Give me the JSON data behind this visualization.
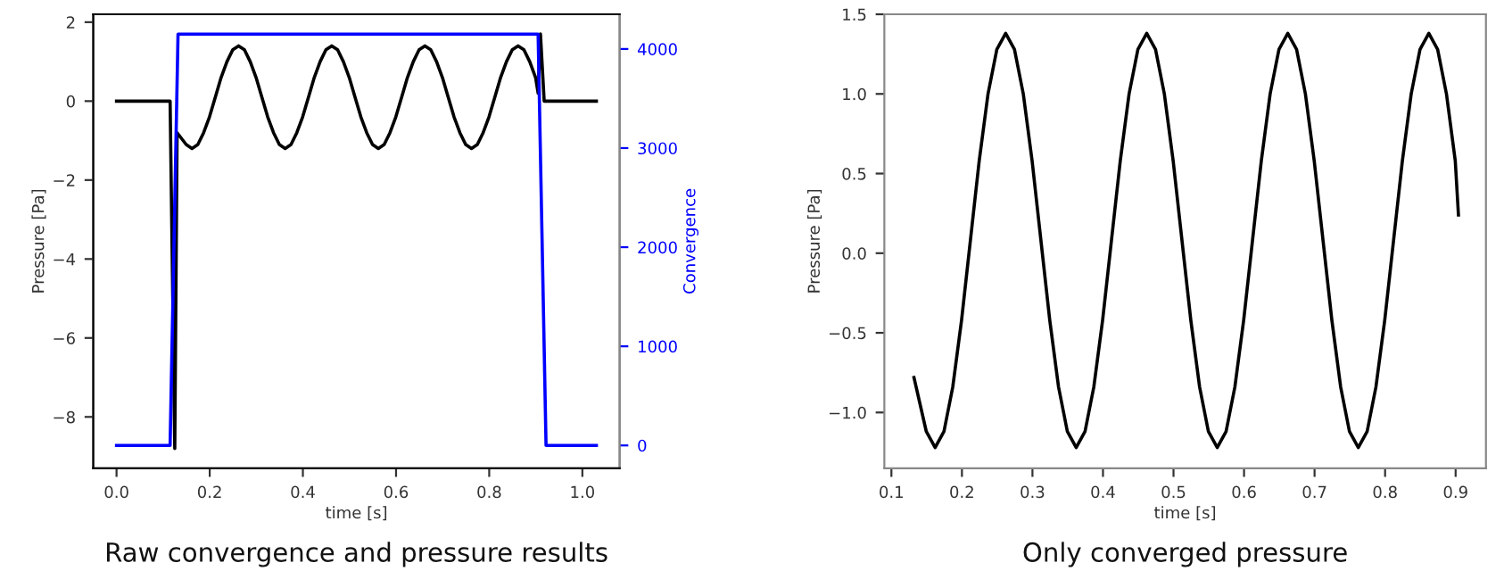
{
  "chart_data": [
    {
      "type": "line",
      "title": "Raw convergence and pressure results",
      "xlabel": "time [s]",
      "ylabel": "Pressure [Pa]",
      "y2label": "Convergence",
      "xlim": [
        -0.05,
        1.08
      ],
      "xticks": [
        {
          "value": 0,
          "label": "0.0"
        },
        {
          "value": 0.2,
          "label": "0.2"
        },
        {
          "value": 0.4,
          "label": "0.4"
        },
        {
          "value": 0.6,
          "label": "0.6"
        },
        {
          "value": 0.8,
          "label": "0.8"
        },
        {
          "value": 1.0,
          "label": "1.0"
        }
      ],
      "ylim": [
        -9.3,
        2.2
      ],
      "yticks": [
        {
          "value": -8,
          "label": "−8"
        },
        {
          "value": -6,
          "label": "−6"
        },
        {
          "value": -4,
          "label": "−4"
        },
        {
          "value": -2,
          "label": "−2"
        },
        0,
        2
      ],
      "y2lim": [
        -230,
        4350
      ],
      "y2ticks": [
        0,
        1000,
        2000,
        3000,
        4000
      ],
      "grid": false,
      "legend": false,
      "series": [
        {
          "color": "#000000",
          "x": [
            0,
            0.115,
            0.125,
            0.13,
            0.1495,
            0.162,
            0.1745,
            0.187,
            0.1995,
            0.212,
            0.2245,
            0.237,
            0.2495,
            0.262,
            0.2745,
            0.287,
            0.2995,
            0.312,
            0.3245,
            0.337,
            0.3495,
            0.362,
            0.3745,
            0.387,
            0.3995,
            0.412,
            0.4245,
            0.437,
            0.4495,
            0.462,
            0.4745,
            0.487,
            0.4995,
            0.512,
            0.5245,
            0.537,
            0.5495,
            0.562,
            0.5745,
            0.587,
            0.5995,
            0.612,
            0.6245,
            0.637,
            0.6495,
            0.662,
            0.6745,
            0.687,
            0.6995,
            0.712,
            0.7245,
            0.737,
            0.7495,
            0.762,
            0.7745,
            0.787,
            0.7995,
            0.812,
            0.8245,
            0.837,
            0.8495,
            0.862,
            0.8745,
            0.887,
            0.8995,
            0.905,
            0.91,
            0.918,
            1.03
          ],
          "values": [
            0,
            0,
            -8.8,
            -0.8,
            -1.1,
            -1.2,
            -1.1,
            -0.8,
            -0.4,
            0.1,
            0.6,
            1.0,
            1.3,
            1.4,
            1.3,
            1.0,
            0.6,
            0.1,
            -0.4,
            -0.8,
            -1.1,
            -1.2,
            -1.1,
            -0.8,
            -0.4,
            0.1,
            0.6,
            1.0,
            1.3,
            1.4,
            1.3,
            1.0,
            0.6,
            0.1,
            -0.4,
            -0.8,
            -1.1,
            -1.2,
            -1.1,
            -0.8,
            -0.4,
            0.1,
            0.6,
            1.0,
            1.3,
            1.4,
            1.3,
            1.0,
            0.6,
            0.1,
            -0.4,
            -0.8,
            -1.1,
            -1.2,
            -1.1,
            -0.8,
            -0.4,
            0.1,
            0.6,
            1.0,
            1.3,
            1.4,
            1.3,
            1.0,
            0.6,
            0.2,
            1.7,
            0,
            0
          ]
        },
        {
          "color": "#0000ff",
          "axis": "y2",
          "x": [
            0,
            0.115,
            0.132,
            0.905,
            0.922,
            1.03
          ],
          "values": [
            0,
            0,
            4150,
            4150,
            0,
            0
          ]
        }
      ]
    },
    {
      "type": "line",
      "title": "Only converged pressure",
      "xlabel": "time [s]",
      "ylabel": "Pressure [Pa]",
      "xlim": [
        0.09,
        0.943
      ],
      "xticks": [
        0.1,
        0.2,
        0.3,
        0.4,
        0.5,
        0.6,
        0.7,
        0.8,
        0.9
      ],
      "ylim": [
        -1.35,
        1.5
      ],
      "yticks": [
        {
          "value": -1.0,
          "label": "−1.0"
        },
        {
          "value": -0.5,
          "label": "−0.5"
        },
        {
          "value": 0,
          "label": "0.0"
        },
        {
          "value": 0.5,
          "label": "0.5"
        },
        {
          "value": 1.0,
          "label": "1.0"
        },
        {
          "value": 1.5,
          "label": "1.5"
        }
      ],
      "grid": false,
      "legend": false,
      "series": [
        {
          "color": "#000000",
          "x": [
            0.132,
            0.1495,
            0.162,
            0.1745,
            0.187,
            0.1995,
            0.212,
            0.2245,
            0.237,
            0.2495,
            0.262,
            0.2745,
            0.287,
            0.2995,
            0.312,
            0.3245,
            0.337,
            0.3495,
            0.362,
            0.3745,
            0.387,
            0.3995,
            0.412,
            0.4245,
            0.437,
            0.4495,
            0.462,
            0.4745,
            0.487,
            0.4995,
            0.512,
            0.5245,
            0.537,
            0.5495,
            0.562,
            0.5745,
            0.587,
            0.5995,
            0.612,
            0.6245,
            0.637,
            0.6495,
            0.662,
            0.6745,
            0.687,
            0.6995,
            0.712,
            0.7245,
            0.737,
            0.7495,
            0.762,
            0.7745,
            0.787,
            0.7995,
            0.812,
            0.8245,
            0.837,
            0.8495,
            0.862,
            0.8745,
            0.887,
            0.8995,
            0.904
          ],
          "values": [
            -0.78,
            -1.12,
            -1.22,
            -1.12,
            -0.84,
            -0.42,
            0.08,
            0.58,
            1.0,
            1.28,
            1.38,
            1.28,
            1.0,
            0.58,
            0.08,
            -0.42,
            -0.84,
            -1.12,
            -1.22,
            -1.12,
            -0.84,
            -0.42,
            0.08,
            0.58,
            1.0,
            1.28,
            1.38,
            1.28,
            1.0,
            0.58,
            0.08,
            -0.42,
            -0.84,
            -1.12,
            -1.22,
            -1.12,
            -0.84,
            -0.42,
            0.08,
            0.58,
            1.0,
            1.28,
            1.38,
            1.28,
            1.0,
            0.58,
            0.08,
            -0.42,
            -0.84,
            -1.12,
            -1.22,
            -1.12,
            -0.84,
            -0.42,
            0.08,
            0.58,
            1.0,
            1.28,
            1.38,
            1.28,
            1.0,
            0.58,
            0.24
          ]
        }
      ]
    }
  ]
}
